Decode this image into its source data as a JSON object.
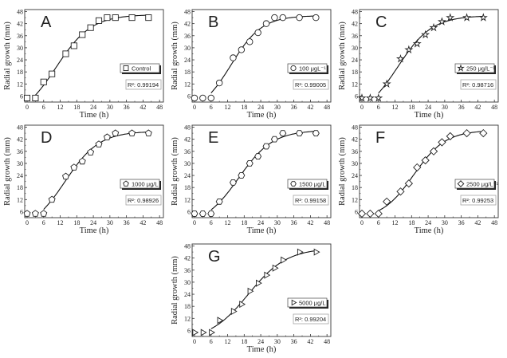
{
  "chart_data": [
    {
      "type": "scatter",
      "panel_label": "A",
      "legend": "Control",
      "r2_label": "R²: 0.99194",
      "marker": "square",
      "xlabel": "Time (h)",
      "ylabel": "Radial growth (mm)",
      "xlim": [
        0,
        48
      ],
      "ylim": [
        3,
        49
      ],
      "xticks": [
        0,
        6,
        12,
        18,
        24,
        30,
        36,
        42,
        48
      ],
      "yticks": [
        6,
        12,
        18,
        24,
        30,
        36,
        42,
        48
      ],
      "fit_x_range": [
        3,
        44
      ],
      "x": [
        0,
        3,
        6,
        9,
        14,
        17,
        20,
        23,
        26,
        29,
        32,
        38,
        44
      ],
      "y": [
        5,
        5,
        13,
        17,
        27,
        31,
        36.5,
        40,
        43.5,
        45,
        45,
        45,
        45
      ]
    },
    {
      "type": "scatter",
      "panel_label": "B",
      "legend": "100 μgL⁻¹",
      "r2_label": "R²: 0.99005",
      "marker": "circle",
      "xlabel": "Time (h)",
      "ylabel": "Radial growth (mm)",
      "xlim": [
        0,
        48
      ],
      "ylim": [
        3,
        49
      ],
      "xticks": [
        0,
        6,
        12,
        18,
        24,
        30,
        36,
        42,
        48
      ],
      "yticks": [
        6,
        12,
        18,
        24,
        30,
        36,
        42,
        48
      ],
      "fit_x_range": [
        6,
        44
      ],
      "x": [
        0,
        3,
        6,
        9,
        14,
        17,
        20,
        23,
        26,
        29,
        32,
        38,
        44
      ],
      "y": [
        5,
        5,
        5,
        12.5,
        25,
        29,
        33,
        37.5,
        42,
        45,
        45,
        45,
        45
      ]
    },
    {
      "type": "scatter",
      "panel_label": "C",
      "legend": "250 μg/L⁻¹",
      "r2_label": "R²: 0.98716",
      "marker": "star",
      "xlabel": "Time (h)",
      "ylabel": "Radial growth (mm)",
      "xlim": [
        0,
        48
      ],
      "ylim": [
        3,
        49
      ],
      "xticks": [
        0,
        6,
        12,
        18,
        24,
        30,
        36,
        42,
        48
      ],
      "yticks": [
        6,
        12,
        18,
        24,
        30,
        36,
        42,
        48
      ],
      "fit_x_range": [
        6,
        44
      ],
      "x": [
        0,
        3,
        6,
        9,
        14,
        17,
        20,
        23,
        26,
        29,
        32,
        38,
        44
      ],
      "y": [
        5,
        5,
        5,
        12,
        24.5,
        29,
        32,
        36.5,
        40,
        43,
        45,
        45,
        45
      ]
    },
    {
      "type": "scatter",
      "panel_label": "D",
      "legend": "1000 μg/L",
      "r2_label": "R²: 0.98926",
      "marker": "pentagon",
      "xlabel": "Time (h)",
      "ylabel": "Radial growth (mm)",
      "xlim": [
        0,
        48
      ],
      "ylim": [
        3,
        49
      ],
      "xticks": [
        0,
        6,
        12,
        18,
        24,
        30,
        36,
        42,
        48
      ],
      "yticks": [
        6,
        12,
        18,
        24,
        30,
        36,
        42,
        48
      ],
      "fit_x_range": [
        6,
        44
      ],
      "x": [
        0,
        3,
        6,
        9,
        14,
        17,
        20,
        23,
        26,
        29,
        32,
        38,
        44
      ],
      "y": [
        5,
        5,
        5,
        12,
        23.5,
        28,
        31,
        35.5,
        39.5,
        43,
        45,
        45,
        45
      ]
    },
    {
      "type": "scatter",
      "panel_label": "E",
      "legend": "1500 μg/L",
      "r2_label": "R²: 0.99158",
      "marker": "hexagon",
      "xlabel": "Time (h)",
      "ylabel": "Radial growth (mm)",
      "xlim": [
        0,
        48
      ],
      "ylim": [
        3,
        49
      ],
      "xticks": [
        0,
        6,
        12,
        18,
        24,
        30,
        36,
        42,
        48
      ],
      "yticks": [
        6,
        12,
        18,
        24,
        30,
        36,
        42,
        48
      ],
      "fit_x_range": [
        6,
        44
      ],
      "x": [
        0,
        3,
        6,
        9,
        14,
        17,
        20,
        23,
        26,
        29,
        32,
        38,
        44
      ],
      "y": [
        5,
        5,
        5,
        11,
        20.5,
        24,
        30,
        33.5,
        38.5,
        42,
        45,
        45,
        45
      ]
    },
    {
      "type": "scatter",
      "panel_label": "F",
      "legend": "2500 μg/L⁻¹",
      "r2_label": "R²: 0.99253",
      "marker": "diamond",
      "xlabel": "Time (h)",
      "ylabel": "Radial growth (mm)",
      "xlim": [
        0,
        48
      ],
      "ylim": [
        3,
        49
      ],
      "xticks": [
        0,
        6,
        12,
        18,
        24,
        30,
        36,
        42,
        48
      ],
      "yticks": [
        6,
        12,
        18,
        24,
        30,
        36,
        42,
        48
      ],
      "fit_x_range": [
        6,
        44
      ],
      "x": [
        0,
        3,
        6,
        9,
        14,
        17,
        20,
        23,
        26,
        29,
        32,
        38,
        44
      ],
      "y": [
        5,
        5,
        5,
        11,
        16,
        20,
        28,
        31.5,
        36,
        40.5,
        43.5,
        45,
        45
      ]
    },
    {
      "type": "scatter",
      "panel_label": "G",
      "legend": "5000 μg/L",
      "r2_label": "R²: 0.99204",
      "marker": "triangle-right",
      "xlabel": "Time (h)",
      "ylabel": "Radial growth (mm)",
      "xlim": [
        0,
        48
      ],
      "ylim": [
        3,
        49
      ],
      "xticks": [
        0,
        6,
        12,
        18,
        24,
        30,
        36,
        42,
        48
      ],
      "yticks": [
        6,
        12,
        18,
        24,
        30,
        36,
        42,
        48
      ],
      "fit_x_range": [
        6,
        44
      ],
      "x": [
        0,
        3,
        6,
        9,
        14,
        17,
        20,
        23,
        26,
        29,
        32,
        38,
        44
      ],
      "y": [
        5,
        5,
        5,
        11,
        15.5,
        19,
        25.5,
        29.5,
        33.5,
        37,
        41,
        45,
        45
      ]
    }
  ]
}
